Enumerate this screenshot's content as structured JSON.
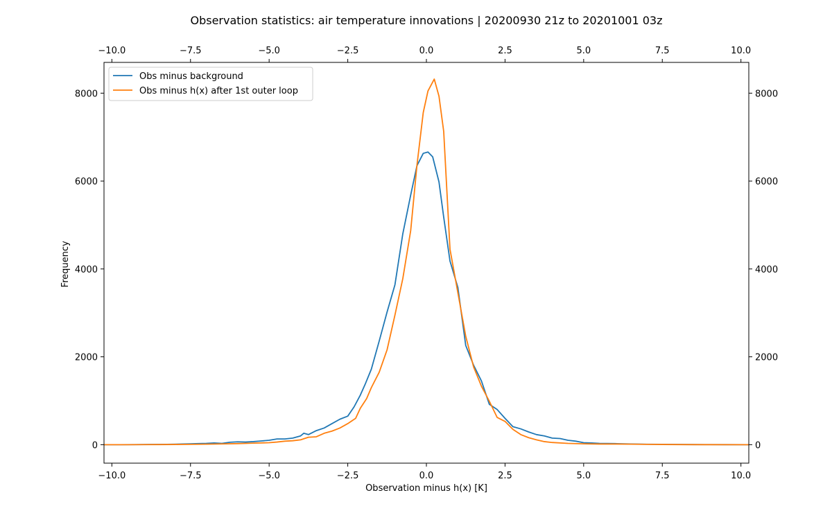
{
  "chart_data": {
    "type": "line",
    "title": "Observation statistics: air temperature innovations | 20200930 21z to 20201001 03z",
    "xlabel": "Observation minus h(x) [K]",
    "ylabel": "Frequency",
    "xlim": [
      -10.25,
      10.25
    ],
    "ylim": [
      -420,
      8700
    ],
    "x_ticks": [
      -10.0,
      -7.5,
      -5.0,
      -2.5,
      0.0,
      2.5,
      5.0,
      7.5,
      10.0
    ],
    "x_tick_labels": [
      "−10.0",
      "−7.5",
      "−5.0",
      "−2.5",
      "0.0",
      "2.5",
      "5.0",
      "7.5",
      "10.0"
    ],
    "y_ticks": [
      0,
      2000,
      4000,
      6000,
      8000
    ],
    "y_tick_labels": [
      "0",
      "2000",
      "4000",
      "6000",
      "8000"
    ],
    "top_axis_mirrors_x": true,
    "right_axis_mirrors_y": true,
    "grid": false,
    "legend_position": "top-left",
    "series": [
      {
        "name": "Obs minus background",
        "color": "#1f77b4",
        "x": [
          -10.25,
          -9.75,
          -9.25,
          -8.75,
          -8.25,
          -7.75,
          -7.5,
          -7.25,
          -7.0,
          -6.75,
          -6.5,
          -6.25,
          -6.0,
          -5.75,
          -5.5,
          -5.25,
          -5.0,
          -4.75,
          -4.5,
          -4.25,
          -4.0,
          -3.9,
          -3.75,
          -3.5,
          -3.25,
          -3.0,
          -2.75,
          -2.5,
          -2.3,
          -2.1,
          -1.95,
          -1.75,
          -1.5,
          -1.25,
          -1.0,
          -0.75,
          -0.5,
          -0.3,
          -0.1,
          0.05,
          0.2,
          0.4,
          0.55,
          0.75,
          1.0,
          1.25,
          1.5,
          1.75,
          2.0,
          2.25,
          2.5,
          2.75,
          3.0,
          3.25,
          3.5,
          3.75,
          4.0,
          4.25,
          4.5,
          4.75,
          5.0,
          5.25,
          5.5,
          6.0,
          6.5,
          7.0,
          7.5,
          8.0,
          8.5,
          9.0,
          9.5,
          10.25
        ],
        "y": [
          0,
          0,
          2,
          5,
          8,
          15,
          20,
          25,
          30,
          40,
          30,
          55,
          65,
          60,
          70,
          85,
          100,
          130,
          130,
          150,
          200,
          260,
          230,
          320,
          380,
          480,
          580,
          650,
          860,
          1130,
          1370,
          1720,
          2360,
          3020,
          3640,
          4800,
          5680,
          6350,
          6630,
          6660,
          6550,
          5980,
          5180,
          4180,
          3580,
          2260,
          1810,
          1450,
          920,
          800,
          600,
          410,
          360,
          290,
          230,
          200,
          150,
          140,
          100,
          80,
          45,
          40,
          30,
          25,
          15,
          10,
          8,
          5,
          3,
          2,
          1,
          0
        ]
      },
      {
        "name": "Obs minus h(x) after 1st outer loop",
        "color": "#ff7f0e",
        "x": [
          -10.25,
          -9.5,
          -9.0,
          -8.5,
          -8.0,
          -7.5,
          -7.0,
          -6.5,
          -6.0,
          -5.5,
          -5.0,
          -4.75,
          -4.5,
          -4.25,
          -4.0,
          -3.75,
          -3.5,
          -3.25,
          -3.0,
          -2.75,
          -2.5,
          -2.25,
          -2.1,
          -1.9,
          -1.75,
          -1.5,
          -1.25,
          -1.0,
          -0.75,
          -0.5,
          -0.3,
          -0.1,
          0.05,
          0.25,
          0.4,
          0.55,
          0.75,
          1.0,
          1.25,
          1.5,
          1.75,
          2.0,
          2.25,
          2.5,
          2.75,
          3.0,
          3.25,
          3.5,
          3.75,
          4.0,
          4.5,
          5.0,
          5.5,
          6.0,
          6.5,
          7.0,
          7.5,
          8.0,
          9.0,
          10.25
        ],
        "y": [
          0,
          0,
          2,
          3,
          5,
          8,
          12,
          18,
          25,
          35,
          45,
          60,
          80,
          90,
          110,
          170,
          180,
          260,
          310,
          380,
          480,
          600,
          830,
          1050,
          1300,
          1650,
          2160,
          2950,
          3780,
          4870,
          6360,
          7560,
          8050,
          8320,
          7930,
          7130,
          4450,
          3460,
          2470,
          1770,
          1330,
          990,
          620,
          530,
          350,
          230,
          160,
          110,
          70,
          50,
          30,
          20,
          15,
          15,
          12,
          8,
          5,
          3,
          1,
          0
        ]
      }
    ]
  }
}
